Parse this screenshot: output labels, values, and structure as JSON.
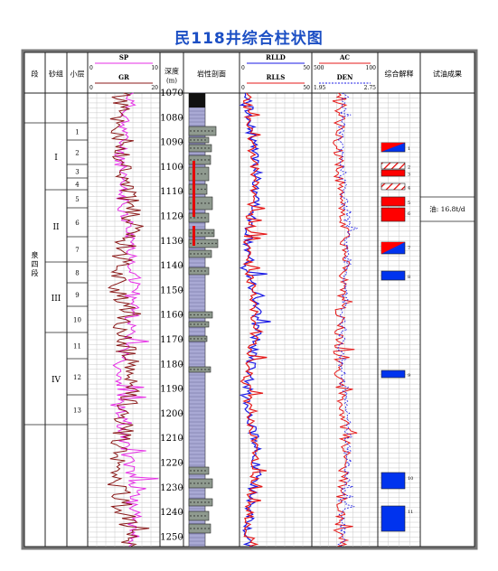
{
  "title": "民118井综合柱状图",
  "headers": {
    "duan": "段",
    "shazu": "砂组",
    "xiaoceng": "小层",
    "sp": "SP",
    "sp_min": "0",
    "sp_max": "10",
    "gr": "GR",
    "gr_min": "0",
    "gr_max": "20",
    "depth": "深度",
    "depth_unit": "(m)",
    "litho": "岩性剖面",
    "rlld": "RLLD",
    "rlld_min": "0",
    "rlld_max": "50",
    "rlls": "RLLS",
    "rlls_min": "0",
    "rlls_max": "50",
    "ac": "AC",
    "ac_min": "500",
    "ac_max": "100",
    "den": "DEN",
    "den_min": "1.95",
    "den_max": "2.75",
    "interp": "综合解释",
    "result": "试油成果"
  },
  "colors": {
    "title": "#1c4fc4",
    "sp": "#e62ee6",
    "gr": "#8b1a1a",
    "rlld": "#1a1ae6",
    "rlls": "#e61a1a",
    "ac": "#e61a1a",
    "den": "#1a1ae6",
    "oil": "#ff0000",
    "water": "#0033ee"
  },
  "formation": "泉四段",
  "sand_groups": [
    "I",
    "II",
    "III",
    "IV"
  ],
  "layers": [
    "1",
    "2",
    "3",
    "4",
    "5",
    "6",
    "7",
    "8",
    "9",
    "10",
    "11",
    "12",
    "13"
  ],
  "depth_ticks": [
    "1070",
    "1080",
    "1090",
    "1100",
    "1110",
    "1120",
    "1130",
    "1140",
    "1150",
    "1160",
    "1170",
    "1180",
    "1190",
    "1200",
    "1210",
    "1220",
    "1230",
    "1240",
    "1250"
  ],
  "interpretation_ids": [
    "1",
    "2",
    "3",
    "4",
    "5",
    "6",
    "7",
    "8",
    "9",
    "10",
    "11"
  ],
  "test_result": "油: 16.8t/d"
}
